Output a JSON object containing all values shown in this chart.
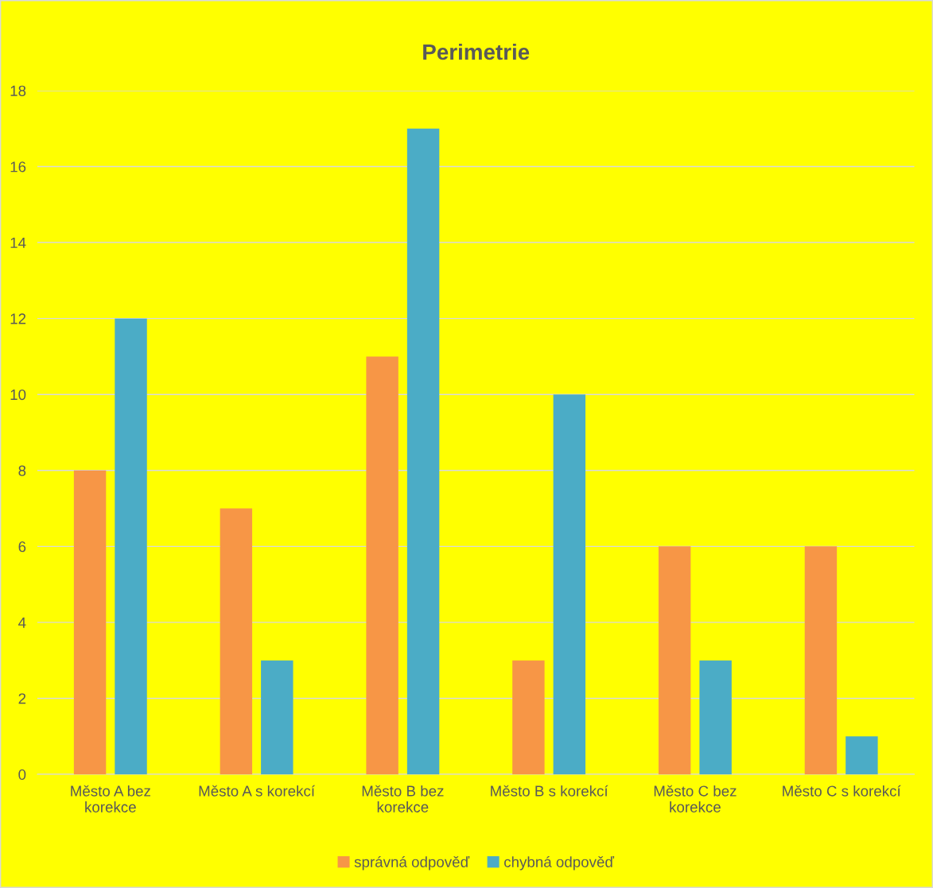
{
  "chart_data": {
    "type": "bar",
    "title": "Perimetrie",
    "categories": [
      "Město A bez\nkorekce",
      "Město A s korekcí",
      "Město B bez\nkorekce",
      "Město B s korekcí",
      "Město C bez\nkorekce",
      "Město C s korekcí"
    ],
    "series": [
      {
        "name": "správná odpověď",
        "color": "#f79646",
        "values": [
          8,
          7,
          11,
          3,
          6,
          6
        ]
      },
      {
        "name": "chybná odpověď",
        "color": "#4bacc6",
        "values": [
          12,
          3,
          17,
          10,
          3,
          1
        ]
      }
    ],
    "ylim": [
      0,
      18
    ],
    "yticks": [
      0,
      2,
      4,
      6,
      8,
      10,
      12,
      14,
      16,
      18
    ],
    "grid": "y",
    "legend": "bottom"
  }
}
